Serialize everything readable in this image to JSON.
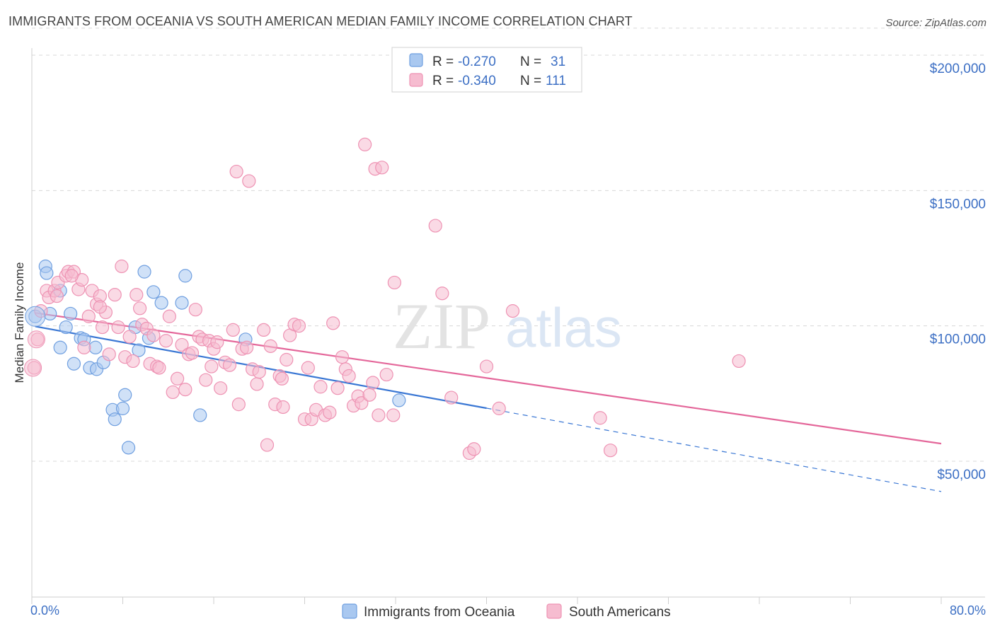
{
  "title": "IMMIGRANTS FROM OCEANIA VS SOUTH AMERICAN MEDIAN FAMILY INCOME CORRELATION CHART",
  "source": "Source: ZipAtlas.com",
  "watermark": {
    "zip": "ZIP",
    "atlas": "atlas"
  },
  "colors": {
    "blue": "#3a77d4",
    "blue_fill": "#a9c8f0",
    "blue_stroke": "#6f9fe0",
    "pink": "#e4679a",
    "pink_fill": "#f6bcd0",
    "pink_stroke": "#ee92b3",
    "grid": "#d8d8d8",
    "tick_text": "#3c6fc4"
  },
  "legend": {
    "rows": [
      {
        "r_label": "R =",
        "r_value": "-0.270",
        "n_label": "N =",
        "n_value": "31",
        "series": "blue"
      },
      {
        "r_label": "R =",
        "r_value": "-0.340",
        "n_label": "N =",
        "n_value": "111",
        "series": "pink"
      }
    ]
  },
  "chart_data": {
    "type": "scatter",
    "title": "IMMIGRANTS FROM OCEANIA VS SOUTH AMERICAN MEDIAN FAMILY INCOME CORRELATION CHART",
    "xlabel": "",
    "ylabel": "Median Family Income",
    "xlim": [
      0,
      80
    ],
    "ylim": [
      0,
      210000
    ],
    "x_tick_labels": [
      "0.0%",
      "80.0%"
    ],
    "y_ticks": [
      {
        "value": 50000,
        "label": "$50,000"
      },
      {
        "value": 100000,
        "label": "$100,000"
      },
      {
        "value": 150000,
        "label": "$150,000"
      },
      {
        "value": 200000,
        "label": "$200,000"
      }
    ],
    "series": [
      {
        "name": "Immigrants from Oceania",
        "color": "blue",
        "points": [
          [
            0.3,
            103500
          ],
          [
            1.2,
            122000
          ],
          [
            1.3,
            119500
          ],
          [
            1.6,
            104500
          ],
          [
            2.5,
            113000
          ],
          [
            2.5,
            92000
          ],
          [
            3.0,
            99500
          ],
          [
            3.4,
            104500
          ],
          [
            3.7,
            86000
          ],
          [
            4.3,
            95500
          ],
          [
            4.6,
            95000
          ],
          [
            5.1,
            84500
          ],
          [
            5.6,
            92000
          ],
          [
            5.7,
            84000
          ],
          [
            6.3,
            86500
          ],
          [
            7.1,
            69000
          ],
          [
            7.3,
            65500
          ],
          [
            8.0,
            69500
          ],
          [
            8.2,
            74500
          ],
          [
            8.5,
            55000
          ],
          [
            9.1,
            99500
          ],
          [
            9.4,
            91000
          ],
          [
            9.9,
            120000
          ],
          [
            10.3,
            95500
          ],
          [
            10.7,
            112500
          ],
          [
            11.4,
            108500
          ],
          [
            13.2,
            108500
          ],
          [
            13.5,
            118500
          ],
          [
            14.8,
            67000
          ],
          [
            18.8,
            95000
          ],
          [
            32.3,
            72500
          ]
        ],
        "trend": {
          "x0": 0.3,
          "y0": 99800,
          "x1": 40.0,
          "y1": 69600,
          "dash_x1": 80.0,
          "dash_y1": 38800
        }
      },
      {
        "name": "South Americans",
        "color": "pink",
        "points": [
          [
            0.2,
            84500
          ],
          [
            0.5,
            95000
          ],
          [
            0.8,
            105500
          ],
          [
            1.3,
            113000
          ],
          [
            1.5,
            110500
          ],
          [
            2.0,
            113000
          ],
          [
            2.2,
            111000
          ],
          [
            2.3,
            116000
          ],
          [
            3.0,
            118500
          ],
          [
            3.2,
            120000
          ],
          [
            3.7,
            120000
          ],
          [
            4.1,
            113500
          ],
          [
            4.4,
            117000
          ],
          [
            4.6,
            92000
          ],
          [
            5.0,
            103500
          ],
          [
            5.3,
            113000
          ],
          [
            5.7,
            108000
          ],
          [
            6.0,
            111000
          ],
          [
            6.2,
            99500
          ],
          [
            6.5,
            105000
          ],
          [
            6.8,
            89500
          ],
          [
            7.3,
            111500
          ],
          [
            7.6,
            99500
          ],
          [
            7.9,
            122000
          ],
          [
            8.2,
            88500
          ],
          [
            8.6,
            96000
          ],
          [
            8.9,
            87000
          ],
          [
            9.2,
            111500
          ],
          [
            9.5,
            106500
          ],
          [
            9.7,
            100500
          ],
          [
            10.1,
            99000
          ],
          [
            10.4,
            86000
          ],
          [
            10.7,
            96500
          ],
          [
            11.0,
            85000
          ],
          [
            11.2,
            84500
          ],
          [
            11.8,
            94500
          ],
          [
            12.1,
            103500
          ],
          [
            12.4,
            75500
          ],
          [
            12.8,
            80500
          ],
          [
            13.2,
            93000
          ],
          [
            13.5,
            76500
          ],
          [
            13.8,
            89500
          ],
          [
            14.1,
            90000
          ],
          [
            14.4,
            106000
          ],
          [
            14.7,
            96000
          ],
          [
            15.0,
            95000
          ],
          [
            15.3,
            80000
          ],
          [
            15.6,
            94500
          ],
          [
            16.0,
            91500
          ],
          [
            16.3,
            94000
          ],
          [
            16.6,
            77000
          ],
          [
            17.0,
            86500
          ],
          [
            17.4,
            85500
          ],
          [
            17.7,
            98500
          ],
          [
            18.0,
            157000
          ],
          [
            18.2,
            71000
          ],
          [
            18.5,
            91500
          ],
          [
            18.9,
            92000
          ],
          [
            19.1,
            153500
          ],
          [
            19.4,
            84000
          ],
          [
            19.8,
            78500
          ],
          [
            20.0,
            83000
          ],
          [
            20.4,
            98500
          ],
          [
            20.7,
            56000
          ],
          [
            21.0,
            92500
          ],
          [
            21.4,
            71000
          ],
          [
            21.8,
            81500
          ],
          [
            22.1,
            70000
          ],
          [
            22.4,
            87500
          ],
          [
            22.7,
            96500
          ],
          [
            23.1,
            100500
          ],
          [
            23.5,
            100000
          ],
          [
            24.0,
            65500
          ],
          [
            24.3,
            84500
          ],
          [
            24.6,
            65500
          ],
          [
            25.0,
            69000
          ],
          [
            25.4,
            77500
          ],
          [
            25.8,
            67000
          ],
          [
            26.2,
            68000
          ],
          [
            26.5,
            101000
          ],
          [
            26.9,
            77000
          ],
          [
            27.3,
            88500
          ],
          [
            27.6,
            84000
          ],
          [
            27.9,
            81500
          ],
          [
            28.3,
            70500
          ],
          [
            28.7,
            74000
          ],
          [
            29.0,
            71500
          ],
          [
            29.3,
            167000
          ],
          [
            29.7,
            74500
          ],
          [
            30.0,
            79000
          ],
          [
            30.2,
            158000
          ],
          [
            30.5,
            67000
          ],
          [
            30.8,
            158500
          ],
          [
            31.2,
            82000
          ],
          [
            31.8,
            67000
          ],
          [
            31.9,
            116000
          ],
          [
            35.5,
            137000
          ],
          [
            36.1,
            112000
          ],
          [
            36.9,
            73500
          ],
          [
            38.5,
            53000
          ],
          [
            38.9,
            54500
          ],
          [
            40.0,
            85000
          ],
          [
            41.1,
            69500
          ],
          [
            42.3,
            105500
          ],
          [
            50.0,
            66000
          ],
          [
            50.9,
            54000
          ],
          [
            62.2,
            87000
          ],
          [
            3.5,
            118500
          ],
          [
            6.0,
            107000
          ],
          [
            15.8,
            85000
          ],
          [
            22.0,
            80500
          ]
        ],
        "trend": {
          "x0": 0.3,
          "y0": 104800,
          "x1": 80.0,
          "y1": 56500
        }
      }
    ]
  },
  "bottom_legend": [
    {
      "label": "Immigrants from Oceania",
      "series": "blue"
    },
    {
      "label": "South Americans",
      "series": "pink"
    }
  ]
}
